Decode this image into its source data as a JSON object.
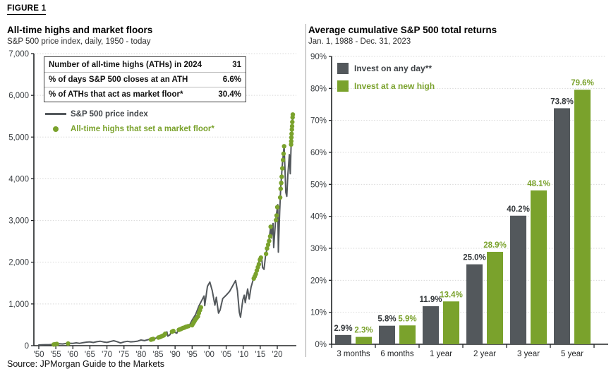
{
  "figure_label": "FIGURE 1",
  "source": "Source: JPMorgan Guide to the Markets",
  "colors": {
    "gray": "#53585c",
    "green": "#7aa22c",
    "grid": "#d7d7d7",
    "axis": "#202325",
    "tick_label": "#3a3e42",
    "value_label_dark": "#33373a",
    "panel_divider": "#a3a3a3"
  },
  "chart_data": [
    {
      "type": "line",
      "title": "All-time highs and market floors",
      "subtitle": "S&P 500 price index, daily, 1950 - today",
      "ylim": [
        0,
        7000
      ],
      "xlim": [
        1950,
        2025
      ],
      "grid": "horizontal-dotted",
      "legend_position": "top-left",
      "legend": [
        {
          "label": "S&P 500 price index",
          "swatch": "line"
        },
        {
          "label": "All-time highs that set a market floor*",
          "swatch": "dot"
        }
      ],
      "stats": [
        {
          "label": "Number of all-time highs (ATHs) in 2024",
          "value": "31"
        },
        {
          "label": "% of days S&P 500 closes at an ATH",
          "value": "6.6%"
        },
        {
          "label": "% of ATHs that act as market floor*",
          "value": "30.4%"
        }
      ],
      "y_ticks": [
        {
          "v": 7000,
          "label": "7,000"
        },
        {
          "v": 6000,
          "label": "6,000"
        },
        {
          "v": 5000,
          "label": "5,000"
        },
        {
          "v": 4000,
          "label": "4,000"
        },
        {
          "v": 3000,
          "label": "3,000"
        },
        {
          "v": 2000,
          "label": "2,000"
        },
        {
          "v": 1000,
          "label": "1,000"
        },
        {
          "v": 0,
          "label": "0"
        }
      ],
      "x_ticks": [
        {
          "year": 1950,
          "label": "'50"
        },
        {
          "year": 1955,
          "label": "'55"
        },
        {
          "year": 1960,
          "label": "'60"
        },
        {
          "year": 1965,
          "label": "'65"
        },
        {
          "year": 1970,
          "label": "'70"
        },
        {
          "year": 1975,
          "label": "'75"
        },
        {
          "year": 1980,
          "label": "'80"
        },
        {
          "year": 1985,
          "label": "'85"
        },
        {
          "year": 1990,
          "label": "'90"
        },
        {
          "year": 1995,
          "label": "'95"
        },
        {
          "year": 2000,
          "label": "'00"
        },
        {
          "year": 2005,
          "label": "'05"
        },
        {
          "year": 2010,
          "label": "'10"
        },
        {
          "year": 2015,
          "label": "'15"
        },
        {
          "year": 2020,
          "label": "'20"
        }
      ],
      "series": [
        {
          "name": "S&P 500 price index",
          "points": [
            [
              1950,
              17
            ],
            [
              1951,
              21
            ],
            [
              1952,
              24
            ],
            [
              1953,
              23
            ],
            [
              1954,
              30
            ],
            [
              1955,
              42
            ],
            [
              1956,
              47
            ],
            [
              1957,
              40
            ],
            [
              1958,
              52
            ],
            [
              1959,
              58
            ],
            [
              1960,
              56
            ],
            [
              1961,
              68
            ],
            [
              1962,
              55
            ],
            [
              1963,
              73
            ],
            [
              1964,
              84
            ],
            [
              1965,
              92
            ],
            [
              1966,
              76
            ],
            [
              1967,
              95
            ],
            [
              1968,
              106
            ],
            [
              1969,
              90
            ],
            [
              1970,
              78
            ],
            [
              1971,
              100
            ],
            [
              1972,
              118
            ],
            [
              1973,
              95
            ],
            [
              1974,
              64
            ],
            [
              1975,
              90
            ],
            [
              1976,
              105
            ],
            [
              1977,
              92
            ],
            [
              1978,
              97
            ],
            [
              1979,
              108
            ],
            [
              1980,
              136
            ],
            [
              1981,
              120
            ],
            [
              1982,
              142
            ],
            [
              1983,
              165
            ],
            [
              1984,
              166
            ],
            [
              1985,
              210
            ],
            [
              1986,
              250
            ],
            [
              1987.6,
              330
            ],
            [
              1987.85,
              228
            ],
            [
              1988.5,
              262
            ],
            [
              1989,
              350
            ],
            [
              1990.5,
              300
            ],
            [
              1991,
              390
            ],
            [
              1992,
              435
            ],
            [
              1993,
              465
            ],
            [
              1994,
              455
            ],
            [
              1995,
              612
            ],
            [
              1996,
              740
            ],
            [
              1997,
              950
            ],
            [
              1998.5,
              1190
            ],
            [
              1998.7,
              960
            ],
            [
              1999.5,
              1420
            ],
            [
              2000.2,
              1525
            ],
            [
              2000.9,
              1320
            ],
            [
              2001.7,
              970
            ],
            [
              2002.1,
              1160
            ],
            [
              2002.75,
              780
            ],
            [
              2003.2,
              850
            ],
            [
              2004,
              1130
            ],
            [
              2005,
              1210
            ],
            [
              2006,
              1300
            ],
            [
              2007.75,
              1560
            ],
            [
              2008.3,
              1320
            ],
            [
              2008.85,
              800
            ],
            [
              2009.2,
              680
            ],
            [
              2009.9,
              1100
            ],
            [
              2010.3,
              1210
            ],
            [
              2010.6,
              1030
            ],
            [
              2011.3,
              1360
            ],
            [
              2011.75,
              1120
            ],
            [
              2012.3,
              1400
            ],
            [
              2013,
              1600
            ],
            [
              2013.5,
              1690
            ],
            [
              2014,
              1850
            ],
            [
              2014.9,
              2090
            ],
            [
              2015.4,
              2120
            ],
            [
              2015.7,
              1870
            ],
            [
              2016.1,
              1830
            ],
            [
              2016.6,
              2190
            ],
            [
              2017.5,
              2480
            ],
            [
              2018.1,
              2870
            ],
            [
              2018.3,
              2580
            ],
            [
              2018.75,
              2930
            ],
            [
              2018.95,
              2350
            ],
            [
              2019.5,
              3000
            ],
            [
              2020.15,
              3380
            ],
            [
              2020.3,
              2240
            ],
            [
              2020.7,
              3200
            ],
            [
              2021,
              3760
            ],
            [
              2021.5,
              4350
            ],
            [
              2022,
              4790
            ],
            [
              2022.5,
              3670
            ],
            [
              2022.8,
              3580
            ],
            [
              2023.1,
              4100
            ],
            [
              2023.55,
              4580
            ],
            [
              2023.8,
              4120
            ],
            [
              2024.05,
              4800
            ],
            [
              2024.2,
              5100
            ],
            [
              2024.35,
              5260
            ],
            [
              2024.45,
              5480
            ],
            [
              2024.5,
              5340
            ],
            [
              2024.6,
              5560
            ]
          ]
        }
      ],
      "ath_markers": {
        "name": "All-time highs that set a market floor*",
        "points": [
          [
            1954.4,
            29
          ],
          [
            1954.8,
            34
          ],
          [
            1955.3,
            40
          ],
          [
            1958.6,
            50
          ],
          [
            1982.9,
            143
          ],
          [
            1983.2,
            152
          ],
          [
            1983.6,
            161
          ],
          [
            1985.1,
            195
          ],
          [
            1985.5,
            205
          ],
          [
            1985.9,
            218
          ],
          [
            1986.3,
            235
          ],
          [
            1986.7,
            248
          ],
          [
            1987.1,
            285
          ],
          [
            1989.1,
            335
          ],
          [
            1989.5,
            352
          ],
          [
            1991.1,
            380
          ],
          [
            1991.5,
            392
          ],
          [
            1991.9,
            408
          ],
          [
            1992.3,
            422
          ],
          [
            1992.7,
            432
          ],
          [
            1993.1,
            448
          ],
          [
            1993.5,
            458
          ],
          [
            1993.9,
            468
          ],
          [
            1995,
            490
          ],
          [
            1995.25,
            525
          ],
          [
            1995.5,
            560
          ],
          [
            1995.75,
            595
          ],
          [
            1996,
            630
          ],
          [
            1996.3,
            660
          ],
          [
            1996.7,
            700
          ],
          [
            1997,
            780
          ],
          [
            1997.3,
            850
          ],
          [
            1997.6,
            920
          ],
          [
            2013.1,
            1610
          ],
          [
            2013.4,
            1660
          ],
          [
            2013.7,
            1720
          ],
          [
            2014,
            1800
          ],
          [
            2014.3,
            1880
          ],
          [
            2014.6,
            1950
          ],
          [
            2014.9,
            2060
          ],
          [
            2015.2,
            2110
          ],
          [
            2016.7,
            2200
          ],
          [
            2017,
            2330
          ],
          [
            2017.3,
            2420
          ],
          [
            2017.6,
            2510
          ],
          [
            2017.9,
            2620
          ],
          [
            2018.05,
            2850
          ],
          [
            2019.6,
            3010
          ],
          [
            2019.8,
            3120
          ],
          [
            2020,
            3320
          ],
          [
            2020.85,
            3550
          ],
          [
            2021,
            3760
          ],
          [
            2021.15,
            3900
          ],
          [
            2021.3,
            4050
          ],
          [
            2021.5,
            4250
          ],
          [
            2021.7,
            4450
          ],
          [
            2021.85,
            4600
          ],
          [
            2022,
            4780
          ],
          [
            2024.05,
            4820
          ],
          [
            2024.1,
            4900
          ],
          [
            2024.15,
            4990
          ],
          [
            2024.2,
            5080
          ],
          [
            2024.28,
            5180
          ],
          [
            2024.35,
            5260
          ],
          [
            2024.42,
            5360
          ],
          [
            2024.5,
            5470
          ],
          [
            2024.55,
            5540
          ]
        ]
      }
    },
    {
      "type": "bar",
      "title": "Average cumulative S&P 500 total returns",
      "subtitle": "Jan. 1, 1988 - Dec. 31, 2023",
      "categories": [
        "3 months",
        "6 months",
        "1 year",
        "2 year",
        "3 year",
        "5 year"
      ],
      "series": [
        {
          "name": "Invest on any day**",
          "color": "#53585c",
          "values": [
            2.9,
            5.8,
            11.9,
            25.0,
            40.2,
            73.8
          ],
          "labels": [
            "2.9%",
            "5.8%",
            "11.9%",
            "25.0%",
            "40.2%",
            "73.8%"
          ]
        },
        {
          "name": "Invest at a new high",
          "color": "#7aa22c",
          "values": [
            2.3,
            5.9,
            13.4,
            28.9,
            48.1,
            79.6
          ],
          "labels": [
            "2.3%",
            "5.9%",
            "13.4%",
            "28.9%",
            "48.1%",
            "79.6%"
          ]
        }
      ],
      "ylim": [
        0,
        90
      ],
      "grid": "horizontal-dotted",
      "legend_position": "top-left",
      "y_ticks": [
        {
          "v": 90,
          "label": "90%"
        },
        {
          "v": 80,
          "label": "80%"
        },
        {
          "v": 70,
          "label": "70%"
        },
        {
          "v": 60,
          "label": "60%"
        },
        {
          "v": 50,
          "label": "50%"
        },
        {
          "v": 40,
          "label": "40%"
        },
        {
          "v": 30,
          "label": "30%"
        },
        {
          "v": 20,
          "label": "20%"
        },
        {
          "v": 10,
          "label": "10%"
        },
        {
          "v": 0,
          "label": "0%"
        }
      ]
    }
  ]
}
